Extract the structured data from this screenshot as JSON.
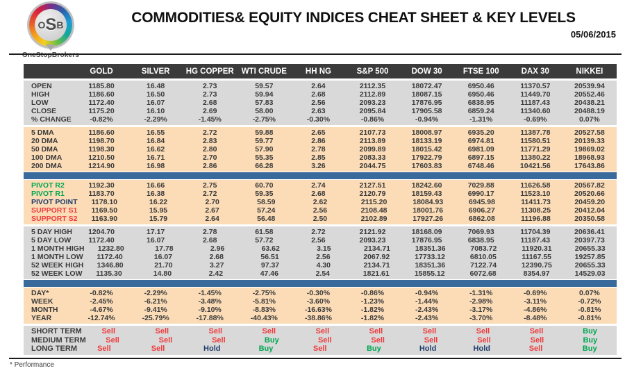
{
  "header": {
    "logo_o": "O",
    "logo_s": "S",
    "logo_b": "B",
    "logo_subtext": "OneStopBrokers"
  },
  "footer": {
    "note": "* Performance"
  },
  "colors": {
    "header_bar": "#3B3B3B",
    "section_gray": "#D9D9D9",
    "section_peach": "#FBDCB7",
    "divider_blue": "#3A699C",
    "text_dark": "#3A3A3A",
    "buy_green": "#00A651",
    "sell_red": "#EE3A3C",
    "hold_navy": "#1F3D6B"
  },
  "chart_data": {
    "type": "table",
    "title": "COMMODITIES& EQUITY INDICES CHEAT SHEET & KEY LEVELS",
    "date": "05/06/2015",
    "columns": [
      "GOLD",
      "SILVER",
      "HG COPPER",
      "WTI CRUDE",
      "HH NG",
      "S&P 500",
      "DOW 30",
      "FTSE 100",
      "DAX 30",
      "NIKKEI"
    ],
    "signal_colors": {
      "Sell": "#EE3A3C",
      "Buy": "#00A651",
      "Hold": "#1F3D6B"
    },
    "sections": [
      {
        "id": "ohlc",
        "bg": "gray",
        "after": "gap",
        "rows": [
          {
            "label": "OPEN",
            "values": [
              "1185.80",
              "16.48",
              "2.73",
              "59.57",
              "2.64",
              "2112.35",
              "18072.47",
              "6950.46",
              "11370.57",
              "20539.94"
            ]
          },
          {
            "label": "HIGH",
            "values": [
              "1186.60",
              "16.50",
              "2.73",
              "59.94",
              "2.68",
              "2112.89",
              "18087.15",
              "6950.46",
              "11449.70",
              "20552.46"
            ]
          },
          {
            "label": "LOW",
            "values": [
              "1172.40",
              "16.07",
              "2.68",
              "57.83",
              "2.56",
              "2093.23",
              "17876.95",
              "6838.95",
              "11187.43",
              "20438.21"
            ]
          },
          {
            "label": "CLOSE",
            "values": [
              "1175.20",
              "16.10",
              "2.69",
              "58.00",
              "2.63",
              "2095.84",
              "17905.58",
              "6859.24",
              "11340.60",
              "20488.19"
            ]
          },
          {
            "label": "% CHANGE",
            "values": [
              "-0.82%",
              "-2.29%",
              "-1.45%",
              "-2.75%",
              "-0.30%",
              "-0.86%",
              "-0.94%",
              "-1.31%",
              "-0.69%",
              "0.07%"
            ]
          }
        ]
      },
      {
        "id": "dma",
        "bg": "peach",
        "after": "bar",
        "rows": [
          {
            "label": "5 DMA",
            "values": [
              "1186.60",
              "16.55",
              "2.72",
              "59.88",
              "2.65",
              "2107.73",
              "18008.97",
              "6935.20",
              "11387.78",
              "20527.58"
            ]
          },
          {
            "label": "20 DMA",
            "values": [
              "1198.70",
              "16.84",
              "2.83",
              "59.77",
              "2.86",
              "2113.89",
              "18133.19",
              "6974.81",
              "11580.51",
              "20139.33"
            ]
          },
          {
            "label": "50 DMA",
            "values": [
              "1198.30",
              "16.62",
              "2.80",
              "57.90",
              "2.78",
              "2099.89",
              "18015.42",
              "6981.09",
              "11771.29",
              "19869.02"
            ]
          },
          {
            "label": "100 DMA",
            "values": [
              "1210.50",
              "16.71",
              "2.70",
              "55.35",
              "2.85",
              "2083.33",
              "17922.79",
              "6897.15",
              "11380.22",
              "18968.93"
            ]
          },
          {
            "label": "200 DMA",
            "values": [
              "1214.90",
              "16.98",
              "2.86",
              "66.28",
              "3.26",
              "2044.75",
              "17603.83",
              "6748.46",
              "10421.56",
              "17643.86"
            ]
          }
        ]
      },
      {
        "id": "pivots",
        "bg": "peach",
        "after": "gap",
        "rows": [
          {
            "label": "PIVOT R2",
            "label_color": "#00A651",
            "values": [
              "1192.30",
              "16.66",
              "2.75",
              "60.70",
              "2.74",
              "2127.51",
              "18242.60",
              "7029.88",
              "11626.58",
              "20567.82"
            ]
          },
          {
            "label": "PIVOT R1",
            "label_color": "#00A651",
            "values": [
              "1183.70",
              "16.38",
              "2.72",
              "59.35",
              "2.68",
              "2120.79",
              "18159.43",
              "6990.17",
              "11523.10",
              "20520.66"
            ]
          },
          {
            "label": "PIVOT POINT",
            "label_color": "#1F3D6B",
            "values": [
              "1178.10",
              "16.22",
              "2.70",
              "58.59",
              "2.62",
              "2115.20",
              "18084.93",
              "6945.98",
              "11411.73",
              "20459.20"
            ]
          },
          {
            "label": "SUPPORT S1",
            "label_color": "#EE3A3C",
            "values": [
              "1169.50",
              "15.95",
              "2.67",
              "57.24",
              "2.56",
              "2108.48",
              "18001.76",
              "6906.27",
              "11308.25",
              "20412.04"
            ]
          },
          {
            "label": "SUPPORT S2",
            "label_color": "#EE3A3C",
            "values": [
              "1163.90",
              "15.79",
              "2.64",
              "56.48",
              "2.50",
              "2102.89",
              "17927.26",
              "6862.08",
              "11196.88",
              "20350.58"
            ]
          }
        ]
      },
      {
        "id": "ranges",
        "bg": "gray",
        "after": "bar",
        "rows": [
          {
            "label": "5 DAY HIGH",
            "values": [
              "1204.70",
              "17.17",
              "2.78",
              "61.58",
              "2.72",
              "2121.92",
              "18168.09",
              "7069.93",
              "11704.39",
              "20636.41"
            ]
          },
          {
            "label": "5 DAY LOW",
            "values": [
              "1172.40",
              "16.07",
              "2.68",
              "57.72",
              "2.56",
              "2093.23",
              "17876.95",
              "6838.95",
              "11187.43",
              "20397.73"
            ]
          },
          {
            "label": "1 MONTH HIGH",
            "values": [
              "1232.80",
              "17.78",
              "2.96",
              "63.62",
              "3.15",
              "2134.71",
              "18351.36",
              "7083.72",
              "11920.31",
              "20655.33"
            ]
          },
          {
            "label": "1 MONTH LOW",
            "values": [
              "1172.40",
              "16.07",
              "2.68",
              "56.51",
              "2.56",
              "2067.92",
              "17733.12",
              "6810.05",
              "11167.55",
              "19257.85"
            ]
          },
          {
            "label": "52 WEEK HIGH",
            "values": [
              "1346.80",
              "21.70",
              "3.27",
              "97.37",
              "4.30",
              "2134.71",
              "18351.36",
              "7122.74",
              "12390.75",
              "20655.33"
            ]
          },
          {
            "label": "52 WEEK LOW",
            "values": [
              "1135.30",
              "14.80",
              "2.42",
              "47.46",
              "2.54",
              "1821.61",
              "15855.12",
              "6072.68",
              "8354.97",
              "14529.03"
            ]
          }
        ]
      },
      {
        "id": "performance",
        "bg": "peach",
        "after": "gap",
        "rows": [
          {
            "label": "DAY*",
            "values": [
              "-0.82%",
              "-2.29%",
              "-1.45%",
              "-2.75%",
              "-0.30%",
              "-0.86%",
              "-0.94%",
              "-1.31%",
              "-0.69%",
              "0.07%"
            ]
          },
          {
            "label": "WEEK",
            "values": [
              "-2.45%",
              "-6.21%",
              "-3.48%",
              "-5.81%",
              "-3.60%",
              "-1.23%",
              "-1.44%",
              "-2.98%",
              "-3.11%",
              "-0.72%"
            ]
          },
          {
            "label": "MONTH",
            "values": [
              "-4.67%",
              "-9.41%",
              "-9.10%",
              "-8.83%",
              "-16.63%",
              "-1.82%",
              "-2.43%",
              "-3.17%",
              "-4.86%",
              "-0.81%"
            ]
          },
          {
            "label": "YEAR",
            "values": [
              "-12.74%",
              "-25.79%",
              "-17.88%",
              "-40.43%",
              "-38.86%",
              "-1.82%",
              "-2.43%",
              "-3.70%",
              "-8.48%",
              "-0.81%"
            ]
          }
        ]
      },
      {
        "id": "signals",
        "bg": "gray",
        "signal": true,
        "after": "none",
        "rows": [
          {
            "label": "SHORT TERM",
            "values": [
              "Sell",
              "Sell",
              "Sell",
              "Sell",
              "Sell",
              "Sell",
              "Sell",
              "Sell",
              "Sell",
              "Buy"
            ]
          },
          {
            "label": "MEDIUM TERM",
            "values": [
              "Sell",
              "Sell",
              "Sell",
              "Buy",
              "Sell",
              "Sell",
              "Sell",
              "Sell",
              "Sell",
              "Buy"
            ]
          },
          {
            "label": "LONG TERM",
            "values": [
              "Sell",
              "Sell",
              "Hold",
              "Buy",
              "Sell",
              "Buy",
              "Hold",
              "Hold",
              "Sell",
              "Buy"
            ]
          }
        ]
      }
    ]
  }
}
